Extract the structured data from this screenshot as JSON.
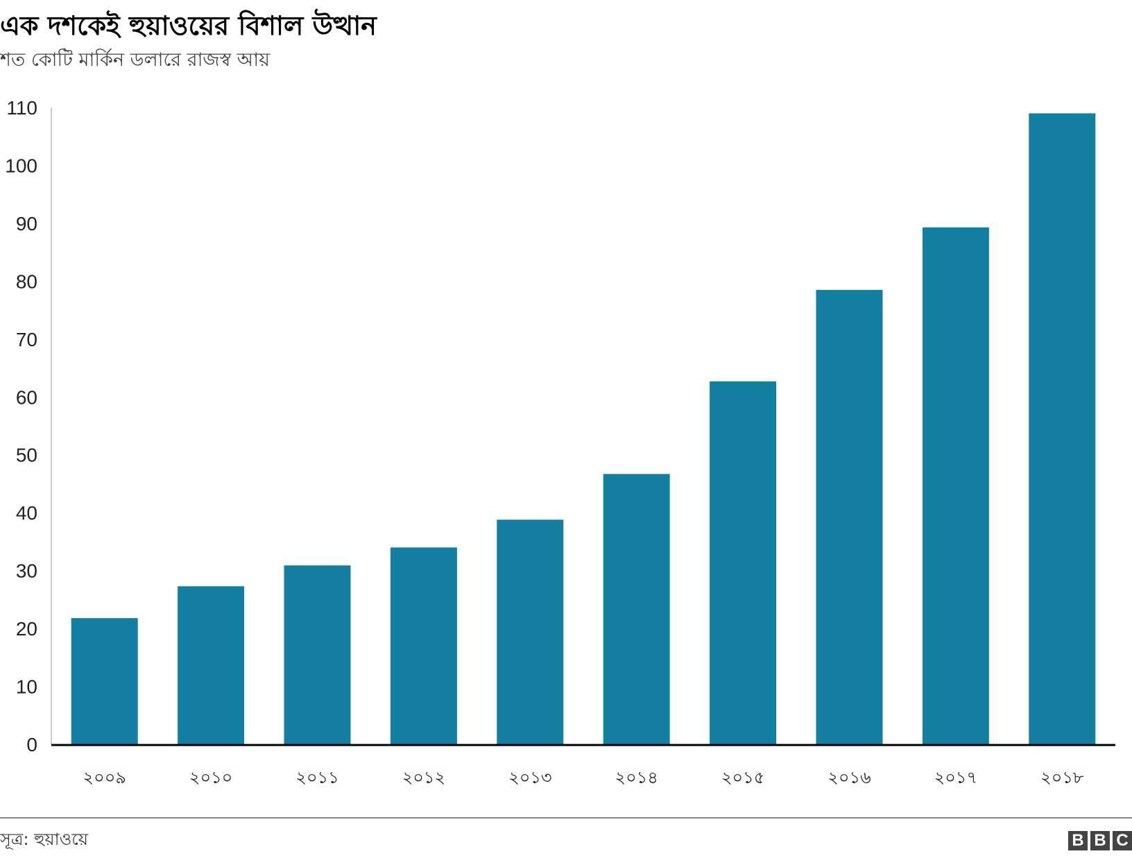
{
  "title": "এক দশকেই হুয়াওয়ের বিশাল উত্থান",
  "subtitle": "শত কোটি মার্কিন ডলারে রাজস্ব আয়",
  "source": "সূত্র: হুয়াওয়ে",
  "logo": {
    "letters": [
      "B",
      "B",
      "C"
    ]
  },
  "colors": {
    "bar": "#1380a1",
    "axis": "#000000",
    "grid": "#cccccc"
  },
  "chart_data": {
    "type": "bar",
    "categories": [
      "২০০৯",
      "২০১০",
      "২০১১",
      "২০১২",
      "২০১৩",
      "২০১৪",
      "২০১৫",
      "২০১৬",
      "২০১৭",
      "২০১৮"
    ],
    "values": [
      21.8,
      27.3,
      30.9,
      34.0,
      38.8,
      46.7,
      62.7,
      78.5,
      89.3,
      109.0
    ],
    "title": "এক দশকেই হুয়াওয়ের বিশাল উত্থান",
    "subtitle": "শত কোটি মার্কিন ডলারে রাজস্ব আয়",
    "ylim": [
      0,
      110
    ],
    "yticks": [
      0,
      10,
      20,
      30,
      40,
      50,
      60,
      70,
      80,
      90,
      100,
      110
    ],
    "grid": false,
    "legend": "none"
  }
}
